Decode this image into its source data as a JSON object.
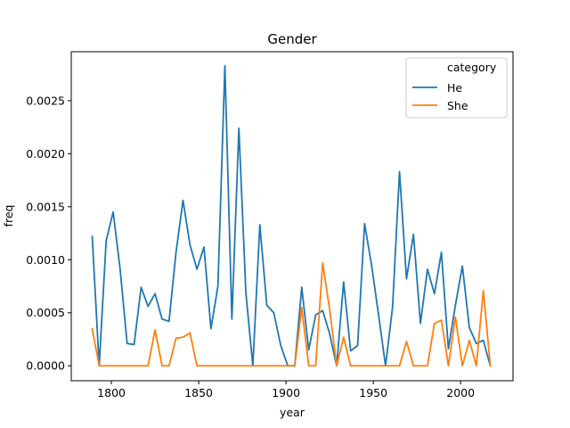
{
  "chart_data": {
    "type": "line",
    "title": "Gender",
    "xlabel": "year",
    "ylabel": "freq",
    "xlim": [
      1777,
      2030
    ],
    "ylim": [
      -0.000141,
      0.002961
    ],
    "xticks": [
      1800,
      1850,
      1900,
      1950,
      2000
    ],
    "yticks": [
      0.0,
      0.0005,
      0.001,
      0.0015,
      0.002,
      0.0025
    ],
    "ytick_labels": [
      "0.0000",
      "0.0005",
      "0.0010",
      "0.0015",
      "0.0020",
      "0.0025"
    ],
    "grid": false,
    "legend": {
      "title": "category",
      "placement": "top-right"
    },
    "x": [
      1789,
      1793,
      1797,
      1801,
      1805,
      1809,
      1813,
      1817,
      1821,
      1825,
      1829,
      1833,
      1837,
      1841,
      1845,
      1849,
      1853,
      1857,
      1861,
      1865,
      1869,
      1873,
      1877,
      1881,
      1885,
      1889,
      1893,
      1897,
      1901,
      1905,
      1909,
      1913,
      1917,
      1921,
      1925,
      1929,
      1933,
      1937,
      1941,
      1945,
      1949,
      1953,
      1957,
      1961,
      1965,
      1969,
      1973,
      1977,
      1981,
      1985,
      1989,
      1993,
      1997,
      2001,
      2005,
      2009,
      2013,
      2017
    ],
    "series": [
      {
        "name": "He",
        "color": "#1f77b4",
        "values": [
          0.00122,
          0.0,
          0.00118,
          0.00145,
          0.00091,
          0.00021,
          0.0002,
          0.00074,
          0.00056,
          0.00068,
          0.00044,
          0.00042,
          0.00107,
          0.00156,
          0.00114,
          0.00091,
          0.00112,
          0.00035,
          0.00075,
          0.00283,
          0.00044,
          0.00224,
          0.00069,
          0.0,
          0.00133,
          0.00057,
          0.0005,
          0.00019,
          0.0,
          0.0,
          0.00074,
          0.00015,
          0.00048,
          0.00052,
          0.0003,
          0.0,
          0.00079,
          0.00014,
          0.00019,
          0.00134,
          0.00095,
          0.00048,
          0.0,
          0.00055,
          0.00183,
          0.00082,
          0.00124,
          0.0004,
          0.00091,
          0.00068,
          0.00107,
          0.00016,
          0.00057,
          0.00094,
          0.00036,
          0.00021,
          0.00024,
          0.0
        ]
      },
      {
        "name": "She",
        "color": "#ff7f0e",
        "values": [
          0.00035,
          0.0,
          0.0,
          0.0,
          0.0,
          0.0,
          0.0,
          0.0,
          0.0,
          0.00034,
          0.0,
          0.0,
          0.00026,
          0.00027,
          0.00031,
          0.0,
          0.0,
          0.0,
          0.0,
          0.0,
          0.0,
          0.0,
          0.0,
          0.0,
          0.0,
          0.0,
          0.0,
          0.0,
          0.0,
          0.0,
          0.00055,
          0.0,
          0.0,
          0.00097,
          0.00053,
          0.0,
          0.00027,
          0.0,
          0.0,
          0.0,
          0.0,
          0.0,
          0.0,
          0.0,
          0.0,
          0.00023,
          0.0,
          0.0,
          0.0,
          0.0004,
          0.00043,
          0.0,
          0.00046,
          0.0,
          0.00024,
          0.0,
          0.00071,
          0.0
        ]
      }
    ]
  }
}
